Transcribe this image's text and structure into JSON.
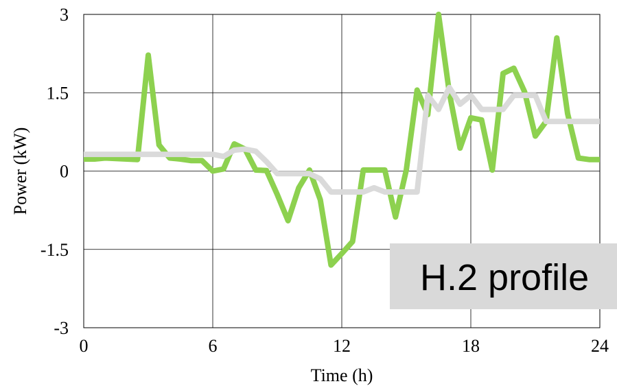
{
  "chart_data": {
    "type": "line",
    "title": "",
    "xlabel": "Time (h)",
    "ylabel": "Power (kW)",
    "xlim": [
      0,
      24
    ],
    "ylim": [
      -3,
      3
    ],
    "xticks": [
      0,
      6,
      12,
      18,
      24
    ],
    "yticks": [
      -3,
      -1.5,
      0,
      1.5,
      3
    ],
    "xtick_labels": [
      "0",
      "6",
      "12",
      "18",
      "24"
    ],
    "ytick_labels": [
      "-3",
      "-1.5",
      "0",
      "1.5",
      "3"
    ],
    "grid": true,
    "annotation": "H.2 profile",
    "series": [
      {
        "color": "#8dd14f",
        "x": [
          0,
          0.5,
          1,
          1.5,
          2,
          2.5,
          3,
          3.5,
          4,
          4.5,
          5,
          5.5,
          6,
          6.5,
          7,
          7.5,
          8,
          8.5,
          9,
          9.5,
          10,
          10.5,
          11,
          11.5,
          12,
          12.5,
          13,
          13.5,
          14,
          14.5,
          15,
          15.5,
          16,
          16.5,
          17,
          17.5,
          18,
          18.5,
          19,
          19.5,
          20,
          20.5,
          21,
          21.5,
          22,
          22.5,
          23,
          23.5,
          24
        ],
        "y": [
          0.23,
          0.23,
          0.25,
          0.24,
          0.23,
          0.22,
          2.22,
          0.5,
          0.25,
          0.23,
          0.2,
          0.2,
          0.0,
          0.04,
          0.52,
          0.42,
          0.02,
          0.01,
          -0.45,
          -0.95,
          -0.32,
          0.02,
          -0.55,
          -1.8,
          -1.58,
          -1.35,
          0.02,
          0.02,
          0.02,
          -0.88,
          0.02,
          1.55,
          1.08,
          3.0,
          1.5,
          0.44,
          1.02,
          0.98,
          0.02,
          1.87,
          1.97,
          1.52,
          0.67,
          0.95,
          2.55,
          1.1,
          0.25,
          0.22,
          0.22
        ]
      },
      {
        "color": "#dadada",
        "x": [
          0,
          1,
          2,
          3,
          4,
          5,
          5.5,
          6,
          6.5,
          7,
          7.5,
          8,
          8.5,
          9,
          9.5,
          10,
          10.5,
          11,
          11.5,
          12,
          12.5,
          13,
          13.5,
          14,
          14.5,
          15,
          15.5,
          16,
          16.5,
          17,
          17.5,
          18,
          18.5,
          19,
          19.5,
          20,
          20.5,
          21,
          21.5,
          22,
          22.5,
          23,
          23.5,
          24
        ],
        "y": [
          0.32,
          0.32,
          0.32,
          0.32,
          0.32,
          0.32,
          0.32,
          0.32,
          0.28,
          0.4,
          0.42,
          0.38,
          0.18,
          -0.05,
          -0.05,
          -0.05,
          -0.05,
          -0.15,
          -0.4,
          -0.4,
          -0.4,
          -0.4,
          -0.32,
          -0.4,
          -0.4,
          -0.4,
          -0.4,
          1.45,
          1.18,
          1.6,
          1.28,
          1.45,
          1.18,
          1.18,
          1.18,
          1.45,
          1.45,
          1.45,
          0.95,
          0.95,
          0.95,
          0.95,
          0.95,
          0.95
        ]
      }
    ]
  }
}
